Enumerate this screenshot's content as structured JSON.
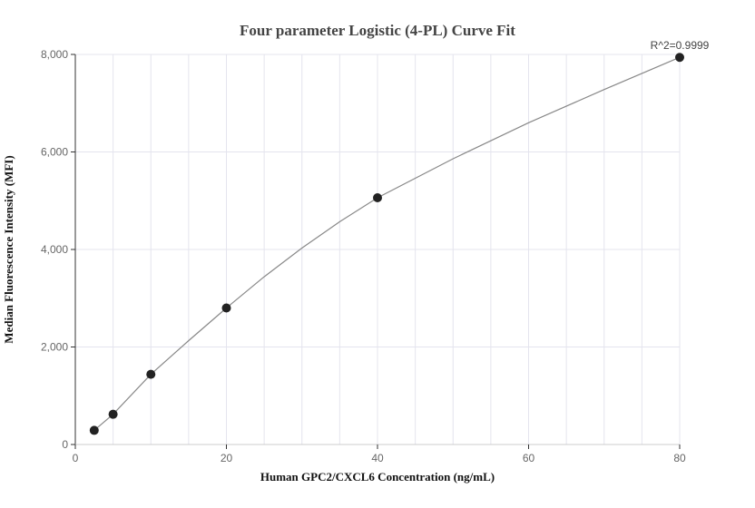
{
  "chart_data": {
    "type": "scatter",
    "title": "Four parameter Logistic (4-PL) Curve Fit",
    "xlabel": "Human GPC2/CXCL6 Concentration (ng/mL)",
    "ylabel": "Median Fluorescence Intensity (MFI)",
    "xlim": [
      0,
      80
    ],
    "ylim": [
      0,
      8000
    ],
    "x_ticks": [
      0,
      20,
      40,
      60,
      80
    ],
    "x_tick_labels": [
      "0",
      "20",
      "40",
      "60",
      "80"
    ],
    "y_ticks": [
      0,
      2000,
      4000,
      6000,
      8000
    ],
    "y_tick_labels": [
      "0",
      "2,000",
      "4,000",
      "6,000",
      "8,000"
    ],
    "points": {
      "x": [
        2.5,
        5,
        10,
        20,
        40,
        80
      ],
      "y": [
        290,
        620,
        1440,
        2800,
        5060,
        7940
      ]
    },
    "fit_curve": {
      "x": [
        2.5,
        5,
        10,
        15,
        20,
        25,
        30,
        35,
        40,
        50,
        60,
        70,
        80
      ],
      "y": [
        290,
        620,
        1440,
        2130,
        2800,
        3440,
        4030,
        4570,
        5060,
        5860,
        6600,
        7280,
        7940
      ]
    },
    "annotation": "R^2=0.9999",
    "grid": true,
    "colors": {
      "points": "#222222",
      "curve": "#888888",
      "grid": "#e4e4ee",
      "axis": "#333333"
    }
  }
}
